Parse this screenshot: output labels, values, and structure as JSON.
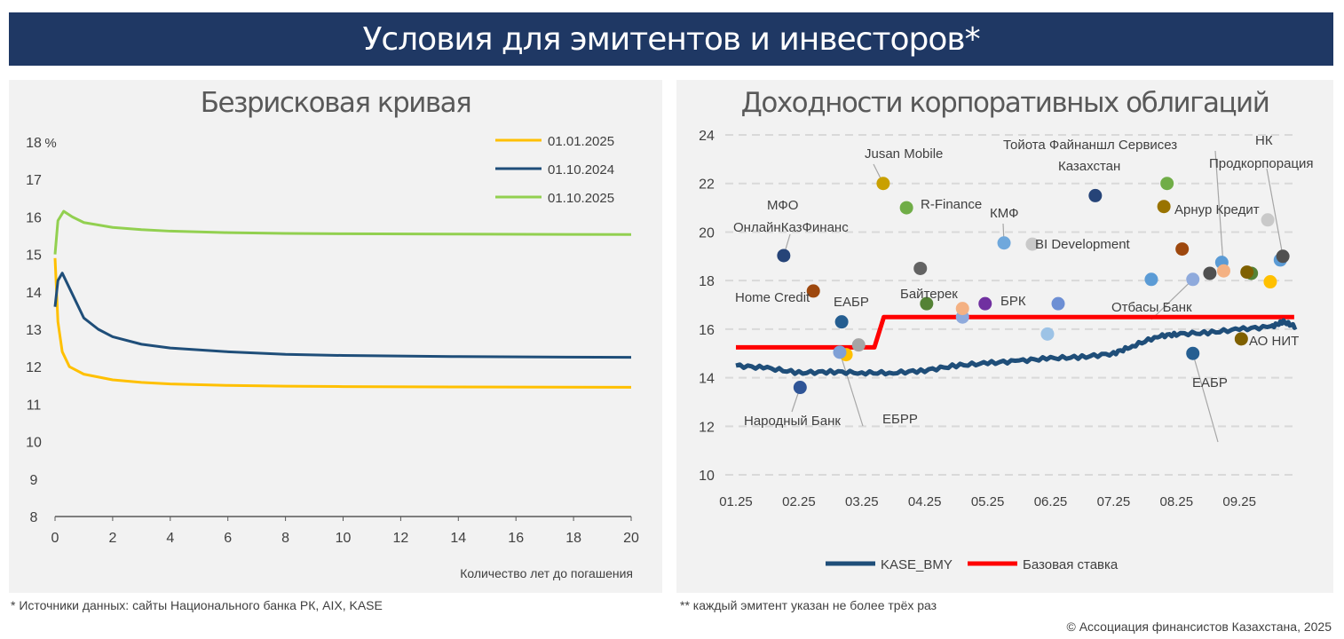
{
  "header": {
    "title": "Условия для эмитентов и инвесторов*"
  },
  "footnotes": {
    "left": "* Источники данных: сайты Национального банка РК, AIX, KASE",
    "right": "** каждый эмитент указан не более трёх раз",
    "copyright": "© Ассоциация финансистов Казахстана, 2025"
  },
  "chart_data": [
    {
      "type": "line",
      "title": "Безрисковая кривая",
      "xlabel": "Количество лет до погашения",
      "ylabel": "%",
      "xlim": [
        0,
        20
      ],
      "ylim": [
        8,
        18
      ],
      "xticks": [
        "0",
        "2",
        "4",
        "6",
        "8",
        "10",
        "12",
        "14",
        "16",
        "18",
        "20"
      ],
      "yticks": [
        "8",
        "9",
        "10",
        "11",
        "12",
        "13",
        "14",
        "15",
        "16",
        "17",
        "18"
      ],
      "legend_position": "top-right",
      "series": [
        {
          "name": "01.01.2025",
          "color": "#FFC000",
          "x": [
            0,
            0.1,
            0.25,
            0.5,
            1,
            2,
            3,
            4,
            6,
            8,
            10,
            14,
            20
          ],
          "y": [
            14.9,
            13.2,
            12.4,
            12.0,
            11.8,
            11.65,
            11.58,
            11.54,
            11.5,
            11.48,
            11.47,
            11.46,
            11.45
          ]
        },
        {
          "name": "01.10.2024",
          "color": "#1F4E79",
          "x": [
            0,
            0.1,
            0.25,
            0.5,
            1,
            1.5,
            2,
            3,
            4,
            6,
            8,
            10,
            14,
            20
          ],
          "y": [
            13.6,
            14.3,
            14.5,
            14.1,
            13.3,
            13.0,
            12.8,
            12.6,
            12.5,
            12.4,
            12.33,
            12.3,
            12.27,
            12.25
          ]
        },
        {
          "name": "01.10.2025",
          "color": "#92D050",
          "x": [
            0,
            0.1,
            0.3,
            0.6,
            1,
            2,
            3,
            4,
            6,
            8,
            10,
            14,
            20
          ],
          "y": [
            15.0,
            15.9,
            16.15,
            16.0,
            15.85,
            15.72,
            15.66,
            15.62,
            15.58,
            15.56,
            15.55,
            15.54,
            15.53
          ]
        }
      ]
    },
    {
      "type": "scatter",
      "title": "Доходности корпоративных облигаций",
      "ylim": [
        10,
        24
      ],
      "xticks": [
        "01.25",
        "02.25",
        "03.25",
        "04.25",
        "05.25",
        "06.25",
        "07.25",
        "08.25",
        "09.25"
      ],
      "yticks": [
        "10",
        "12",
        "14",
        "16",
        "18",
        "20",
        "22",
        "24"
      ],
      "legend_position": "bottom",
      "series": [
        {
          "name": "KASE_BMY",
          "color": "#1F4E79",
          "x": [
            0,
            0.5,
            1,
            1.5,
            2,
            2.5,
            3,
            3.5,
            4,
            4.5,
            5,
            5.5,
            6,
            6.3,
            6.7,
            7,
            7.5,
            8,
            8.5,
            8.7,
            8.9
          ],
          "y": [
            14.5,
            14.4,
            14.2,
            14.25,
            14.2,
            14.2,
            14.3,
            14.5,
            14.6,
            14.7,
            14.8,
            14.85,
            15.0,
            15.3,
            15.7,
            15.8,
            15.85,
            16.0,
            16.1,
            16.3,
            16.1
          ]
        },
        {
          "name": "Базовая ставка",
          "color": "#FF0000",
          "x": [
            0,
            2.2,
            2.35,
            8.87
          ],
          "y": [
            15.25,
            15.25,
            16.5,
            16.5
          ]
        }
      ],
      "points": [
        {
          "x": 0.76,
          "y": 19.03,
          "color": "#264478",
          "label": "МФО ОнлайнКазФинанс"
        },
        {
          "x": 1.23,
          "y": 17.57,
          "color": "#9E480E",
          "label": "Home Credit"
        },
        {
          "x": 1.02,
          "y": 13.6,
          "color": "#2F5597",
          "label": "Народный Банк"
        },
        {
          "x": 1.68,
          "y": 16.3,
          "color": "#255E91",
          "label": "ЕАБР"
        },
        {
          "x": 1.75,
          "y": 14.95,
          "color": "#FFC000"
        },
        {
          "x": 1.65,
          "y": 15.05,
          "color": "#7FA0D6",
          "label": "ЕБРР"
        },
        {
          "x": 2.34,
          "y": 22.0,
          "color": "#C9A000",
          "label": "Jusan Mobile"
        },
        {
          "x": 1.95,
          "y": 15.35,
          "color": "#A5A5A5"
        },
        {
          "x": 2.71,
          "y": 21.0,
          "color": "#70AD47",
          "label": "R-Finance"
        },
        {
          "x": 2.93,
          "y": 18.5,
          "color": "#636363"
        },
        {
          "x": 3.03,
          "y": 17.05,
          "color": "#548235",
          "label": "Байтерек"
        },
        {
          "x": 3.6,
          "y": 16.5,
          "color": "#8FAADC"
        },
        {
          "x": 3.6,
          "y": 16.85,
          "color": "#F4B183"
        },
        {
          "x": 3.96,
          "y": 17.05,
          "color": "#7030A0",
          "label": "БРК"
        },
        {
          "x": 4.26,
          "y": 19.55,
          "color": "#6FA8DC",
          "label": "КМФ"
        },
        {
          "x": 4.71,
          "y": 19.5,
          "color": "#C9C9C9",
          "label": "BI Development"
        },
        {
          "x": 5.12,
          "y": 17.05,
          "color": "#6D8FD4"
        },
        {
          "x": 4.95,
          "y": 15.8,
          "color": "#9DC3E6"
        },
        {
          "x": 5.71,
          "y": 21.5,
          "color": "#264478",
          "label": "Тойота Файнаншл Сервисез Казахстан"
        },
        {
          "x": 6.6,
          "y": 18.05,
          "color": "#5B9BD5"
        },
        {
          "x": 6.85,
          "y": 22.0,
          "color": "#70AD47"
        },
        {
          "x": 6.8,
          "y": 21.05,
          "color": "#997300",
          "label": "Арнур Кредит"
        },
        {
          "x": 7.09,
          "y": 19.3,
          "color": "#9E480E"
        },
        {
          "x": 7.26,
          "y": 18.05,
          "color": "#8FAADC",
          "label": "Отбасы Банк"
        },
        {
          "x": 7.53,
          "y": 18.3,
          "color": "#505050"
        },
        {
          "x": 7.72,
          "y": 18.75,
          "color": "#5B9BD5"
        },
        {
          "x": 7.75,
          "y": 18.4,
          "color": "#F4B183"
        },
        {
          "x": 8.19,
          "y": 18.3,
          "color": "#548235"
        },
        {
          "x": 8.12,
          "y": 18.35,
          "color": "#7F6000"
        },
        {
          "x": 8.49,
          "y": 17.95,
          "color": "#FFC000"
        },
        {
          "x": 8.45,
          "y": 20.5,
          "color": "#C9C9C9"
        },
        {
          "x": 8.65,
          "y": 18.85,
          "color": "#5B9BD5"
        },
        {
          "x": 8.69,
          "y": 19.0,
          "color": "#505050",
          "label": "НК Продкорпорация"
        },
        {
          "x": 8.03,
          "y": 15.6,
          "color": "#7F6000",
          "label": "АО НИТ"
        },
        {
          "x": 7.26,
          "y": 15.0,
          "color": "#255E91",
          "label": "ЕАБР"
        }
      ]
    }
  ],
  "labels": {
    "mfo1": "МФО",
    "mfo2": "ОнлайнКазФинанс",
    "home": "Home Credit",
    "narod": "Народный Банк",
    "eabr1": "ЕАБР",
    "ebrr": "ЕБРР",
    "jusan": "Jusan Mobile",
    "rfin": "R-Finance",
    "baiterek": "Байтерек",
    "brk": "БРК",
    "kmf": "КМФ",
    "bi": "BI Development",
    "toyota1": "Тойота Файнаншл Сервисез",
    "toyota2": "Казахстан",
    "arnur": "Арнур Кредит",
    "otbasy": "Отбасы Банк",
    "nk1": "НК",
    "nk2": "Продкорпорация",
    "nit": "АО НИТ",
    "eabr2": "ЕАБР"
  }
}
